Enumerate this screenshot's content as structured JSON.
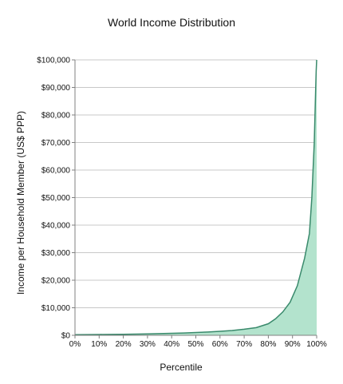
{
  "chart_data": {
    "type": "area",
    "title": "World Income Distribution",
    "xlabel": "Percentile",
    "ylabel": "Income per Household Member  (US$ PPP)",
    "x_ticks": [
      "0%",
      "10%",
      "20%",
      "30%",
      "40%",
      "50%",
      "60%",
      "70%",
      "80%",
      "90%",
      "100%"
    ],
    "y_ticks": [
      "$0",
      "$10,000",
      "$20,000",
      "$30,000",
      "$40,000",
      "$50,000",
      "$60,000",
      "$70,000",
      "$80,000",
      "$90,000",
      "$100,000"
    ],
    "xlim": [
      0,
      100
    ],
    "ylim": [
      0,
      100000
    ],
    "grid": "horizontal",
    "legend": "none",
    "colors": {
      "fill": "#b3e3cd",
      "line": "#3a8a6c",
      "grid": "#c8c8c8",
      "axis": "#808080"
    },
    "x": [
      0,
      5,
      10,
      15,
      20,
      25,
      30,
      35,
      40,
      45,
      50,
      55,
      60,
      65,
      70,
      75,
      80,
      83,
      86,
      89,
      92,
      95,
      97,
      98,
      98.5,
      99,
      99.3,
      99.6,
      99.8,
      100
    ],
    "y": [
      200,
      250,
      300,
      330,
      360,
      450,
      520,
      620,
      720,
      840,
      1000,
      1200,
      1450,
      1750,
      2200,
      2800,
      4200,
      6000,
      8500,
      12000,
      18000,
      28000,
      37000,
      50000,
      60000,
      70000,
      80000,
      90000,
      96000,
      100000
    ]
  }
}
